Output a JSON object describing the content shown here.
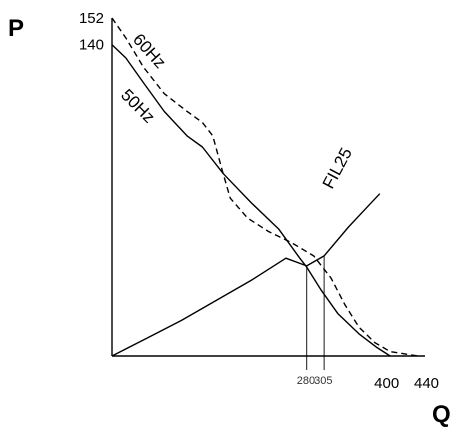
{
  "chart_data": {
    "type": "line",
    "xlabel": "Q",
    "ylabel": "P",
    "xlim": [
      0,
      440
    ],
    "ylim": [
      0,
      152
    ],
    "x_ticks": [
      {
        "value": 280,
        "label": "280",
        "size": "small"
      },
      {
        "value": 305,
        "label": "305",
        "size": "small"
      },
      {
        "value": 400,
        "label": "400",
        "size": "big"
      },
      {
        "value": 440,
        "label": "440",
        "size": "big"
      }
    ],
    "y_ticks": [
      {
        "value": 152,
        "label": "152"
      },
      {
        "value": 140,
        "label": "140"
      }
    ],
    "series": [
      {
        "name": "60Hz",
        "style": "dashed",
        "points": [
          [
            0,
            152
          ],
          [
            20,
            143
          ],
          [
            45,
            130
          ],
          [
            75,
            118
          ],
          [
            108,
            110
          ],
          [
            130,
            105
          ],
          [
            145,
            99
          ],
          [
            158,
            84
          ],
          [
            170,
            71
          ],
          [
            195,
            62
          ],
          [
            225,
            56
          ],
          [
            258,
            51
          ],
          [
            290,
            45
          ],
          [
            315,
            35
          ],
          [
            335,
            23
          ],
          [
            355,
            13
          ],
          [
            378,
            6
          ],
          [
            400,
            2
          ],
          [
            440,
            0
          ]
        ]
      },
      {
        "name": "50Hz",
        "style": "solid",
        "points": [
          [
            0,
            140
          ],
          [
            20,
            134
          ],
          [
            45,
            123
          ],
          [
            75,
            110
          ],
          [
            108,
            99
          ],
          [
            130,
            94
          ],
          [
            160,
            82
          ],
          [
            200,
            69
          ],
          [
            240,
            57
          ],
          [
            270,
            44
          ],
          [
            280,
            40
          ],
          [
            300,
            30
          ],
          [
            325,
            19
          ],
          [
            355,
            10
          ],
          [
            380,
            4
          ],
          [
            400,
            0
          ]
        ]
      },
      {
        "name": "FIL25",
        "style": "solid",
        "points": [
          [
            0,
            0
          ],
          [
            50,
            8
          ],
          [
            100,
            16
          ],
          [
            150,
            25
          ],
          [
            200,
            34
          ],
          [
            250,
            44
          ],
          [
            280,
            40.5
          ],
          [
            305,
            45
          ],
          [
            340,
            58
          ],
          [
            370,
            68
          ],
          [
            385,
            73
          ]
        ]
      }
    ],
    "operating_points": [
      {
        "x": 280,
        "y": 40.5
      },
      {
        "x": 305,
        "y": 45
      }
    ],
    "grid": false,
    "legend": "none"
  }
}
